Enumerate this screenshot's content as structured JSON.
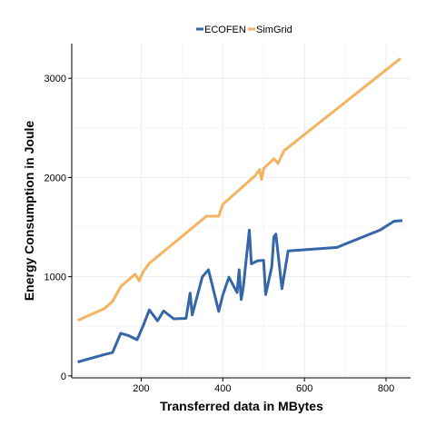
{
  "chart_data": {
    "type": "line",
    "title": "",
    "xlabel": "Transferred data in MBytes",
    "ylabel": "Energy Consumption in Joule",
    "xlim": [
      30,
      860
    ],
    "ylim": [
      -20,
      3350
    ],
    "x_ticks": [
      200,
      400,
      600,
      800
    ],
    "y_ticks": [
      0,
      1000,
      2000,
      3000
    ],
    "grid": true,
    "legend_position": "top-center",
    "series": [
      {
        "name": "ECOFEN",
        "color": "#3566a8",
        "points": [
          [
            45,
            140
          ],
          [
            110,
            215
          ],
          [
            130,
            235
          ],
          [
            150,
            430
          ],
          [
            170,
            405
          ],
          [
            190,
            365
          ],
          [
            205,
            505
          ],
          [
            220,
            665
          ],
          [
            240,
            555
          ],
          [
            255,
            655
          ],
          [
            280,
            575
          ],
          [
            310,
            580
          ],
          [
            320,
            835
          ],
          [
            325,
            615
          ],
          [
            350,
            1000
          ],
          [
            365,
            1070
          ],
          [
            390,
            650
          ],
          [
            400,
            815
          ],
          [
            415,
            995
          ],
          [
            435,
            840
          ],
          [
            440,
            1070
          ],
          [
            445,
            770
          ],
          [
            450,
            885
          ],
          [
            465,
            1470
          ],
          [
            470,
            1130
          ],
          [
            485,
            1160
          ],
          [
            500,
            1165
          ],
          [
            505,
            820
          ],
          [
            520,
            1100
          ],
          [
            525,
            1400
          ],
          [
            530,
            1430
          ],
          [
            545,
            880
          ],
          [
            560,
            1260
          ],
          [
            680,
            1295
          ],
          [
            700,
            1330
          ],
          [
            785,
            1470
          ],
          [
            820,
            1560
          ],
          [
            840,
            1565
          ]
        ]
      },
      {
        "name": "SimGrid",
        "color": "#f4b35e",
        "points": [
          [
            45,
            560
          ],
          [
            110,
            680
          ],
          [
            130,
            750
          ],
          [
            150,
            900
          ],
          [
            185,
            1025
          ],
          [
            195,
            960
          ],
          [
            205,
            1050
          ],
          [
            220,
            1135
          ],
          [
            360,
            1610
          ],
          [
            390,
            1610
          ],
          [
            400,
            1730
          ],
          [
            480,
            2020
          ],
          [
            490,
            2080
          ],
          [
            495,
            1980
          ],
          [
            500,
            2090
          ],
          [
            525,
            2190
          ],
          [
            535,
            2140
          ],
          [
            550,
            2270
          ],
          [
            835,
            3200
          ]
        ]
      }
    ]
  }
}
